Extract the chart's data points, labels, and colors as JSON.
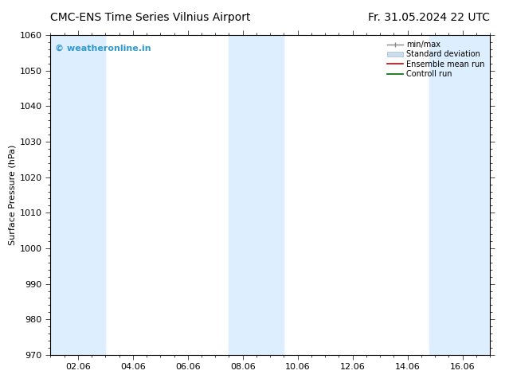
{
  "title_left": "CMC-ENS Time Series Vilnius Airport",
  "title_right": "Fr. 31.05.2024 22 UTC",
  "ylabel": "Surface Pressure (hPa)",
  "ylim": [
    970,
    1060
  ],
  "yticks": [
    970,
    980,
    990,
    1000,
    1010,
    1020,
    1030,
    1040,
    1050,
    1060
  ],
  "xtick_positions": [
    2,
    4,
    6,
    8,
    10,
    12,
    14,
    16
  ],
  "xtick_labels": [
    "02.06",
    "04.06",
    "06.06",
    "08.06",
    "10.06",
    "12.06",
    "14.06",
    "16.06"
  ],
  "x_min": 1.0,
  "x_max": 17.0,
  "watermark": "© weatheronline.in",
  "watermark_color": "#3399cc",
  "bg_color": "#ffffff",
  "plot_bg_color": "#ffffff",
  "shaded_bands": [
    {
      "x_start": 1.0,
      "x_end": 3.0,
      "color": "#ddeeff"
    },
    {
      "x_start": 7.5,
      "x_end": 9.5,
      "color": "#ddeeff"
    },
    {
      "x_start": 14.8,
      "x_end": 17.0,
      "color": "#ddeeff"
    }
  ],
  "legend_items": [
    {
      "label": "min/max",
      "color": "#aaaaaa",
      "lw": 1.2,
      "style": "minmax"
    },
    {
      "label": "Standard deviation",
      "color": "#ccddf0",
      "lw": 8,
      "style": "band"
    },
    {
      "label": "Ensemble mean run",
      "color": "#cc0000",
      "lw": 1.2,
      "style": "line"
    },
    {
      "label": "Controll run",
      "color": "#006600",
      "lw": 1.2,
      "style": "line"
    }
  ],
  "title_fontsize": 10,
  "axis_fontsize": 8,
  "tick_fontsize": 8,
  "legend_fontsize": 7,
  "watermark_fontsize": 8
}
